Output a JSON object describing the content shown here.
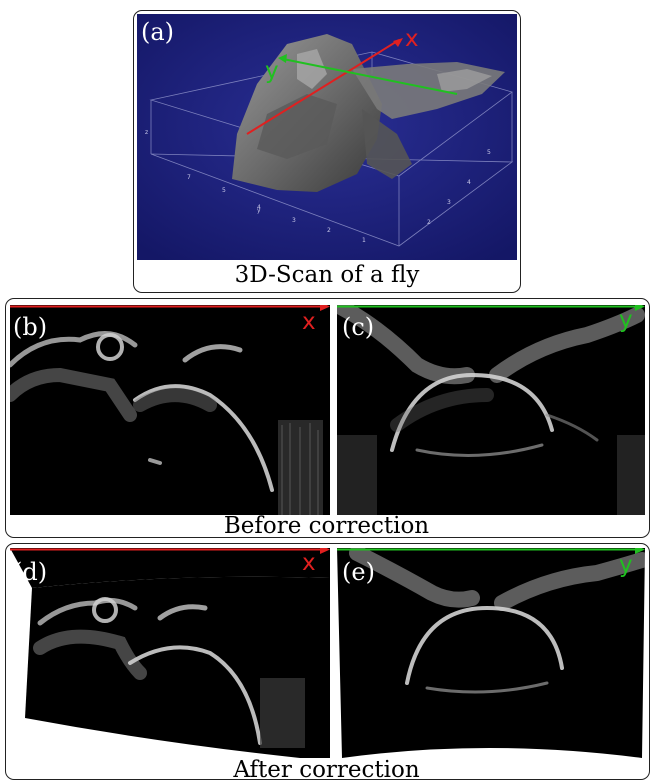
{
  "figure": {
    "panel_a": {
      "label": "(a)",
      "caption": "3D-Scan of a fly",
      "axis_x": "x",
      "axis_y": "y"
    },
    "group_before": {
      "caption": "Before correction"
    },
    "group_after": {
      "caption": "After correction"
    },
    "panel_b": {
      "label": "(b)",
      "axis": "x"
    },
    "panel_c": {
      "label": "(c)",
      "axis": "y"
    },
    "panel_d": {
      "label": "(d)",
      "axis": "x"
    },
    "panel_e": {
      "label": "(e)",
      "axis": "y"
    }
  },
  "colors": {
    "x_axis": "#e02020",
    "y_axis": "#20c020",
    "scan_background": "#1b1f7a"
  }
}
